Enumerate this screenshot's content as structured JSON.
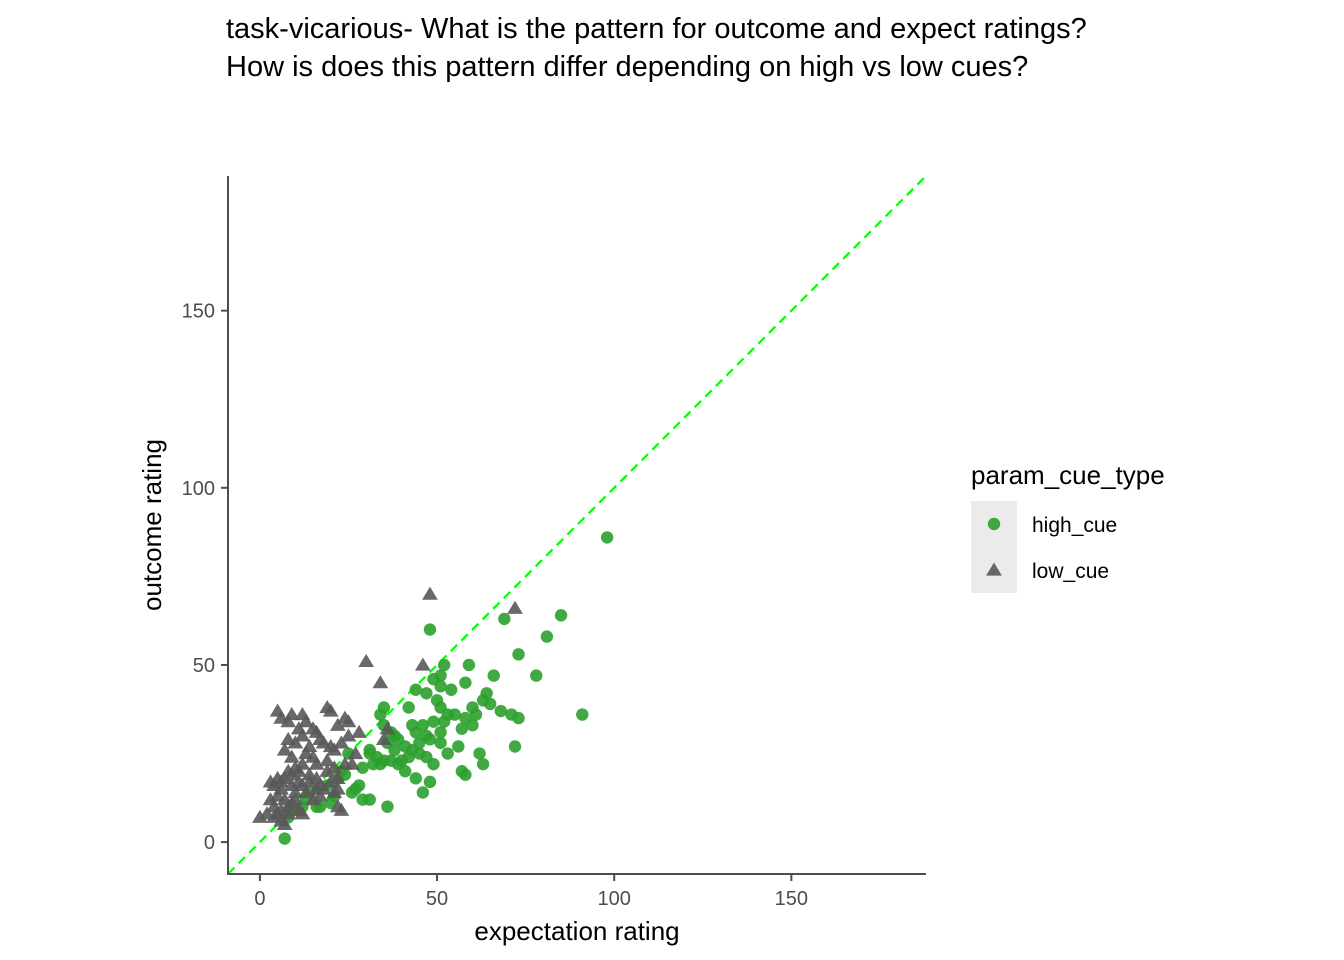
{
  "title_line1": "task-vicarious- What is the pattern for outcome and expect ratings?",
  "title_line2": "How is does this pattern differ depending on high vs low cues?",
  "chart_data": {
    "type": "scatter",
    "xlabel": "expectation rating",
    "ylabel": "outcome rating",
    "xlim": [
      -9,
      188
    ],
    "ylim": [
      -9,
      188
    ],
    "xticks": [
      0,
      50,
      100,
      150
    ],
    "yticks": [
      0,
      50,
      100,
      150
    ],
    "grid": false,
    "legend_title": "param_cue_type",
    "legend_position": "right",
    "reference_line": {
      "type": "identity",
      "style": "dashed",
      "color": "#00ff00"
    },
    "series": [
      {
        "name": "high_cue",
        "marker": "circle",
        "color": "#2ca02c",
        "points": [
          [
            98,
            86
          ],
          [
            85,
            64
          ],
          [
            81,
            58
          ],
          [
            73,
            53
          ],
          [
            78,
            47
          ],
          [
            69,
            63
          ],
          [
            48,
            60
          ],
          [
            59,
            50
          ],
          [
            52,
            50
          ],
          [
            51,
            47
          ],
          [
            47,
            42
          ],
          [
            49,
            46
          ],
          [
            44,
            43
          ],
          [
            51,
            44
          ],
          [
            54,
            43
          ],
          [
            58,
            45
          ],
          [
            63,
            40
          ],
          [
            64,
            42
          ],
          [
            65,
            39
          ],
          [
            68,
            37
          ],
          [
            66,
            47
          ],
          [
            71,
            36
          ],
          [
            73,
            35
          ],
          [
            91,
            36
          ],
          [
            72,
            27
          ],
          [
            62,
            25
          ],
          [
            63,
            22
          ],
          [
            56,
            27
          ],
          [
            57,
            20
          ],
          [
            58,
            19
          ],
          [
            60,
            38
          ],
          [
            58,
            35
          ],
          [
            60,
            33
          ],
          [
            61,
            36
          ],
          [
            52,
            34
          ],
          [
            55,
            36
          ],
          [
            57,
            32
          ],
          [
            50,
            40
          ],
          [
            51,
            38
          ],
          [
            53,
            36
          ],
          [
            49,
            34
          ],
          [
            47,
            30
          ],
          [
            51,
            31
          ],
          [
            48,
            29
          ],
          [
            44,
            31
          ],
          [
            43,
            26
          ],
          [
            45,
            25
          ],
          [
            47,
            24
          ],
          [
            49,
            22
          ],
          [
            45,
            28
          ],
          [
            41,
            27
          ],
          [
            42,
            24
          ],
          [
            41,
            20
          ],
          [
            44,
            18
          ],
          [
            46,
            14
          ],
          [
            48,
            17
          ],
          [
            39,
            29
          ],
          [
            40,
            23
          ],
          [
            38,
            26
          ],
          [
            37,
            31
          ],
          [
            35,
            33
          ],
          [
            36,
            28
          ],
          [
            34,
            36
          ],
          [
            35,
            38
          ],
          [
            38,
            30
          ],
          [
            42,
            38
          ],
          [
            43,
            33
          ],
          [
            37,
            23
          ],
          [
            35,
            23
          ],
          [
            33,
            24
          ],
          [
            31,
            26
          ],
          [
            32,
            22
          ],
          [
            29,
            21
          ],
          [
            28,
            16
          ],
          [
            27,
            15
          ],
          [
            26,
            14
          ],
          [
            24,
            19
          ],
          [
            25,
            25
          ],
          [
            23,
            20
          ],
          [
            22,
            18
          ],
          [
            21,
            13
          ],
          [
            19,
            16
          ],
          [
            20,
            11
          ],
          [
            17,
            10
          ],
          [
            16,
            10
          ],
          [
            14,
            14
          ],
          [
            13,
            12
          ],
          [
            12,
            10
          ],
          [
            10,
            9
          ],
          [
            8,
            7
          ],
          [
            7,
            1
          ],
          [
            31,
            12
          ],
          [
            29,
            12
          ],
          [
            36,
            10
          ],
          [
            31,
            25
          ],
          [
            34,
            22
          ],
          [
            39,
            22
          ],
          [
            51,
            28
          ],
          [
            53,
            25
          ],
          [
            46,
            33
          ]
        ]
      },
      {
        "name": "low_cue",
        "marker": "triangle",
        "color": "#595959",
        "points": [
          [
            48,
            70
          ],
          [
            72,
            66
          ],
          [
            46,
            50
          ],
          [
            30,
            51
          ],
          [
            34,
            45
          ],
          [
            5,
            37
          ],
          [
            6,
            35
          ],
          [
            8,
            34
          ],
          [
            9,
            36
          ],
          [
            12,
            36
          ],
          [
            13,
            34
          ],
          [
            19,
            38
          ],
          [
            20,
            37
          ],
          [
            24,
            35
          ],
          [
            22,
            33
          ],
          [
            28,
            31
          ],
          [
            25,
            30
          ],
          [
            15,
            32
          ],
          [
            16,
            31
          ],
          [
            17,
            29
          ],
          [
            11,
            32
          ],
          [
            12,
            30
          ],
          [
            10,
            28
          ],
          [
            8,
            29
          ],
          [
            7,
            26
          ],
          [
            9,
            24
          ],
          [
            13,
            25
          ],
          [
            14,
            27
          ],
          [
            18,
            28
          ],
          [
            20,
            27
          ],
          [
            21,
            26
          ],
          [
            19,
            23
          ],
          [
            16,
            22
          ],
          [
            15,
            24
          ],
          [
            12,
            22
          ],
          [
            11,
            20
          ],
          [
            10,
            21
          ],
          [
            8,
            20
          ],
          [
            7,
            18
          ],
          [
            6,
            17
          ],
          [
            5,
            18
          ],
          [
            4,
            16
          ],
          [
            3,
            17
          ],
          [
            6,
            15
          ],
          [
            9,
            16
          ],
          [
            10,
            14
          ],
          [
            12,
            16
          ],
          [
            14,
            17
          ],
          [
            16,
            18
          ],
          [
            17,
            16
          ],
          [
            18,
            15
          ],
          [
            20,
            17
          ],
          [
            22,
            18
          ],
          [
            21,
            21
          ],
          [
            24,
            22
          ],
          [
            23,
            28
          ],
          [
            25,
            34
          ],
          [
            35,
            29
          ],
          [
            36,
            32
          ],
          [
            27,
            25
          ],
          [
            26,
            22
          ],
          [
            9,
            11
          ],
          [
            10,
            12
          ],
          [
            11,
            9
          ],
          [
            12,
            8
          ],
          [
            8,
            10
          ],
          [
            7,
            12
          ],
          [
            6,
            9
          ],
          [
            5,
            8
          ],
          [
            4,
            10
          ],
          [
            3,
            12
          ],
          [
            2,
            8
          ],
          [
            0,
            7
          ],
          [
            4,
            7
          ],
          [
            6,
            6
          ],
          [
            7,
            5
          ],
          [
            8,
            8
          ],
          [
            5,
            13
          ],
          [
            13,
            14
          ],
          [
            14,
            19
          ],
          [
            11,
            17
          ],
          [
            9,
            19
          ],
          [
            19,
            20
          ],
          [
            22,
            15
          ],
          [
            21,
            14
          ],
          [
            23,
            9
          ],
          [
            22,
            10
          ],
          [
            17,
            13
          ],
          [
            15,
            12
          ],
          [
            16,
            15
          ]
        ]
      }
    ]
  }
}
